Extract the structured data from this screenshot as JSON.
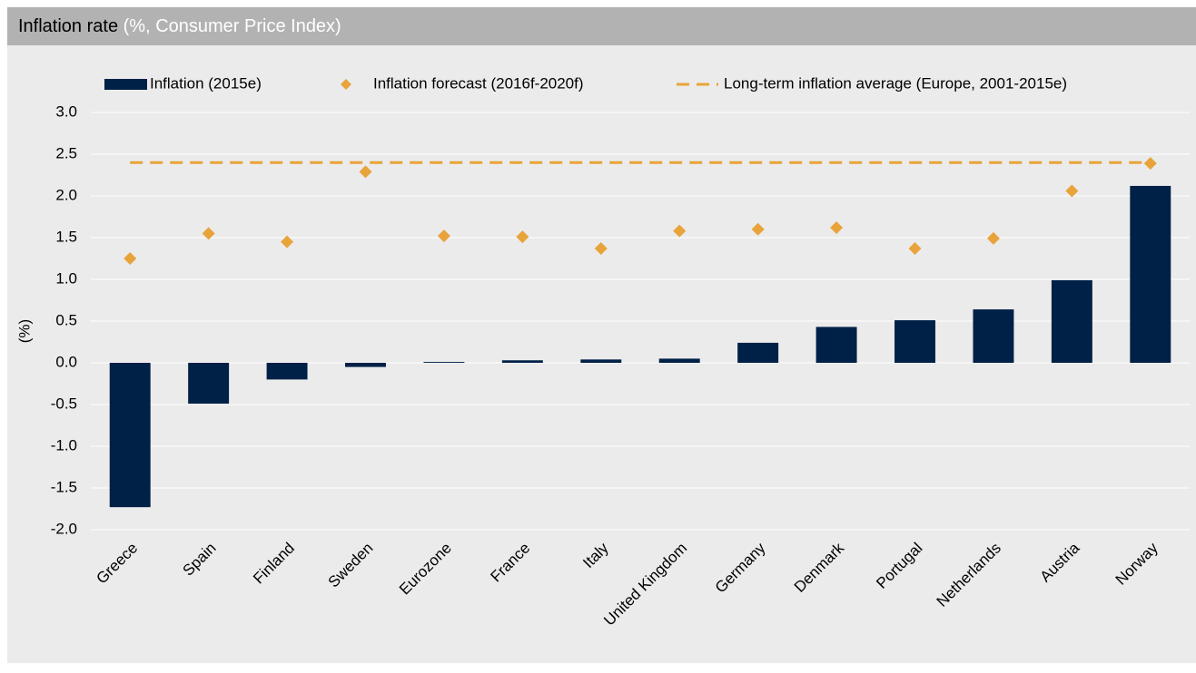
{
  "chart_data": {
    "type": "bar",
    "title": "Inflation rate",
    "subtitle": "(%, Consumer Price Index)",
    "y_label": "(%)",
    "categories": [
      "Greece",
      "Spain",
      "Finland",
      "Sweden",
      "Eurozone",
      "France",
      "Italy",
      "United Kingdom",
      "Germany",
      "Denmark",
      "Portugal",
      "Netherlands",
      "Austria",
      "Norway"
    ],
    "series": [
      {
        "name": "Inflation (2015e)",
        "type": "bar",
        "color": "#002147",
        "values": [
          -1.73,
          -0.49,
          -0.2,
          -0.05,
          0.01,
          0.03,
          0.04,
          0.05,
          0.24,
          0.43,
          0.51,
          0.64,
          0.99,
          2.12
        ]
      },
      {
        "name": "Inflation forecast (2016f-2020f)",
        "type": "scatter",
        "color": "#e8a33a",
        "values": [
          1.25,
          1.55,
          1.45,
          2.29,
          1.52,
          1.51,
          1.37,
          1.58,
          1.6,
          1.62,
          1.37,
          1.49,
          2.06,
          2.39
        ]
      },
      {
        "name": "Long-term inflation average (Europe, 2001-2015e)",
        "type": "line",
        "color": "#e8a33a",
        "values": [
          2.4,
          2.4,
          2.4,
          2.4,
          2.4,
          2.4,
          2.4,
          2.4,
          2.4,
          2.4,
          2.4,
          2.4,
          2.4,
          2.4
        ]
      }
    ],
    "ylim": [
      -2,
      3
    ],
    "yticks": [
      {
        "value": -2,
        "label": "-2.0"
      },
      {
        "value": -1.5,
        "label": "-1.5"
      },
      {
        "value": -1,
        "label": "-1.0"
      },
      {
        "value": -0.5,
        "label": "-0.5"
      },
      {
        "value": 0,
        "label": "0.0"
      },
      {
        "value": 0.5,
        "label": "0.5"
      },
      {
        "value": 1,
        "label": "1.0"
      },
      {
        "value": 1.5,
        "label": "1.5"
      },
      {
        "value": 2,
        "label": "2.0"
      },
      {
        "value": 2.5,
        "label": "2.5"
      },
      {
        "value": 3,
        "label": "3.0"
      }
    ],
    "grid": true
  }
}
